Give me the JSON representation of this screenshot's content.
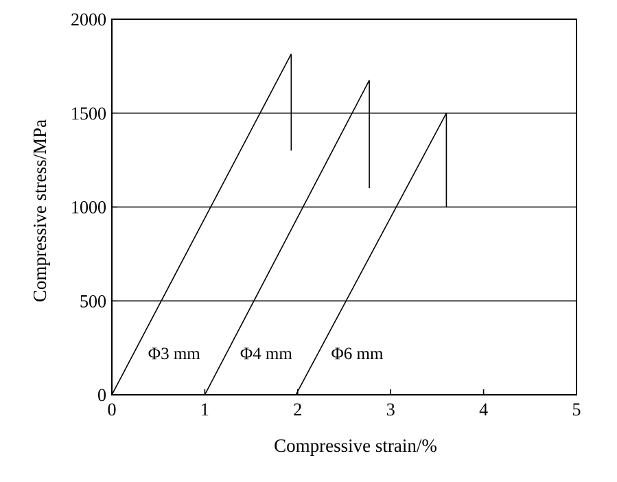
{
  "chart_data": {
    "type": "line",
    "xlabel": "Compressive strain/%",
    "ylabel": "Compressive stress/MPa",
    "xlim": [
      0,
      5
    ],
    "ylim": [
      0,
      2000
    ],
    "x_ticks": [
      "0",
      "1",
      "2",
      "3",
      "4",
      "5"
    ],
    "y_ticks": [
      "0",
      "500",
      "1000",
      "1500",
      "2000"
    ],
    "gridlines_y": [
      500,
      1000,
      1500
    ],
    "grid": "horizontal",
    "series": [
      {
        "name": "Φ3 mm",
        "points": [
          [
            0,
            0
          ],
          [
            1.93,
            1815
          ],
          [
            1.93,
            1300
          ]
        ]
      },
      {
        "name": "Φ4 mm",
        "points": [
          [
            1.0,
            0
          ],
          [
            2.77,
            1675
          ],
          [
            2.77,
            1100
          ]
        ]
      },
      {
        "name": "Φ6 mm",
        "points": [
          [
            1.98,
            0
          ],
          [
            3.6,
            1500
          ],
          [
            3.6,
            1000
          ]
        ]
      }
    ],
    "series_labels": [
      {
        "text": "Φ3 mm",
        "x": 0.39,
        "y": 190
      },
      {
        "text": "Φ4 mm",
        "x": 1.38,
        "y": 190
      },
      {
        "text": "Φ6 mm",
        "x": 2.36,
        "y": 190
      }
    ]
  }
}
